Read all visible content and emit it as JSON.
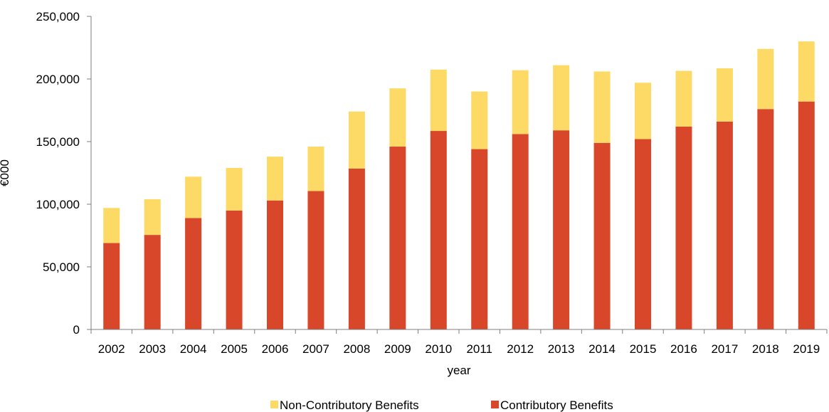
{
  "chart_data": {
    "type": "bar",
    "stacked": true,
    "xlabel": "year",
    "ylabel": "€000",
    "ylim": [
      0,
      250000
    ],
    "yticks": [
      0,
      50000,
      100000,
      150000,
      200000,
      250000
    ],
    "ytick_labels": [
      "0",
      "50,000",
      "100,000",
      "150,000",
      "200,000",
      "250,000"
    ],
    "grid": false,
    "legend_position": "bottom",
    "categories": [
      "2002",
      "2003",
      "2004",
      "2005",
      "2006",
      "2007",
      "2008",
      "2009",
      "2010",
      "2011",
      "2012",
      "2013",
      "2014",
      "2015",
      "2016",
      "2017",
      "2018",
      "2019"
    ],
    "series": [
      {
        "name": "Contributory Benefits",
        "color": "#d9472b",
        "values": [
          69000,
          75500,
          89000,
          95000,
          103000,
          110500,
          128500,
          146000,
          158500,
          144000,
          156000,
          159000,
          149000,
          152000,
          162000,
          166000,
          176000,
          182000
        ]
      },
      {
        "name": "Non-Contributory Benefits",
        "color": "#fdd966",
        "values": [
          28000,
          28500,
          33000,
          34000,
          35000,
          35500,
          45500,
          46500,
          49000,
          46000,
          51000,
          52000,
          57000,
          45000,
          44500,
          42500,
          48000,
          48000
        ]
      }
    ],
    "legend_order": [
      "Non-Contributory Benefits",
      "Contributory Benefits"
    ]
  }
}
